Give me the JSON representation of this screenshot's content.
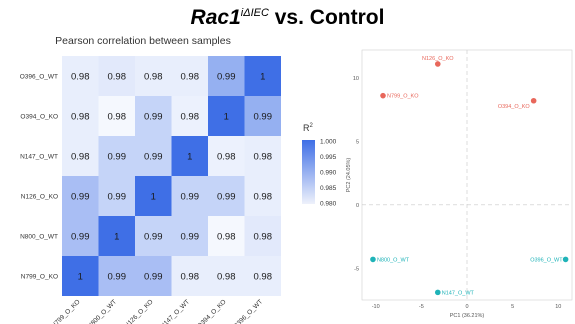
{
  "slide": {
    "title_main": "Rac1",
    "title_sup": "iΔIEC",
    "title_rest": " vs. Control"
  },
  "chart_data": [
    {
      "type": "heatmap",
      "title": "Pearson correlation between samples",
      "rows": [
        "O396_O_WT",
        "O394_O_KO",
        "N147_O_WT",
        "N126_O_KO",
        "N800_O_WT",
        "N799_O_KO"
      ],
      "cols": [
        "N799_O_KO",
        "N800_O_WT",
        "N126_O_KO",
        "N147_O_WT",
        "O394_O_KO",
        "O396_O_WT"
      ],
      "values": [
        [
          0.98,
          0.98,
          0.98,
          0.98,
          0.99,
          1
        ],
        [
          0.98,
          0.98,
          0.99,
          0.98,
          1,
          0.99
        ],
        [
          0.98,
          0.99,
          0.99,
          1,
          0.98,
          0.98
        ],
        [
          0.99,
          0.99,
          1,
          0.99,
          0.99,
          0.98
        ],
        [
          0.99,
          1,
          0.99,
          0.99,
          0.98,
          0.98
        ],
        [
          1,
          0.99,
          0.99,
          0.98,
          0.98,
          0.98
        ]
      ],
      "shading": [
        [
          0.12,
          0.15,
          0.12,
          0.12,
          0.55,
          1.0
        ],
        [
          0.12,
          0.05,
          0.3,
          0.1,
          1.0,
          0.55
        ],
        [
          0.12,
          0.3,
          0.3,
          1.0,
          0.1,
          0.12
        ],
        [
          0.45,
          0.3,
          1.0,
          0.3,
          0.3,
          0.12
        ],
        [
          0.45,
          1.0,
          0.3,
          0.3,
          0.05,
          0.15
        ],
        [
          1.0,
          0.45,
          0.45,
          0.12,
          0.12,
          0.12
        ]
      ],
      "legend": {
        "title": "R",
        "title_sup": "2",
        "ticks": [
          "1.000",
          "0.995",
          "0.990",
          "0.985",
          "0.980"
        ]
      },
      "colors": {
        "low": "#ffffff",
        "high": "#3f6fe6",
        "text": "#1a1a1a"
      }
    },
    {
      "type": "scatter",
      "xlabel": "PC1 (36.21%)",
      "ylabel": "PC2 (24.05%)",
      "xticks": [
        "-10",
        "-5",
        "0",
        "5",
        "10"
      ],
      "yticks": [
        "10",
        "5",
        "0",
        "-5"
      ],
      "xlim": [
        -11.5,
        11.5
      ],
      "ylim": [
        -7.5,
        12.2
      ],
      "points": [
        {
          "label": "N126_O_KO",
          "x": -3.2,
          "y": 11.1,
          "group": "KO"
        },
        {
          "label": "N799_O_KO",
          "x": -9.2,
          "y": 8.6,
          "group": "KO"
        },
        {
          "label": "O394_O_KO",
          "x": 7.3,
          "y": 8.2,
          "group": "KO"
        },
        {
          "label": "N800_O_WT",
          "x": -10.3,
          "y": -4.3,
          "group": "WT"
        },
        {
          "label": "O396_O_WT",
          "x": 10.8,
          "y": -4.3,
          "group": "WT"
        },
        {
          "label": "N147_O_WT",
          "x": -3.2,
          "y": -6.9,
          "group": "WT"
        }
      ],
      "colors": {
        "KO": "#e8675b",
        "WT": "#1fb3b8"
      }
    }
  ]
}
